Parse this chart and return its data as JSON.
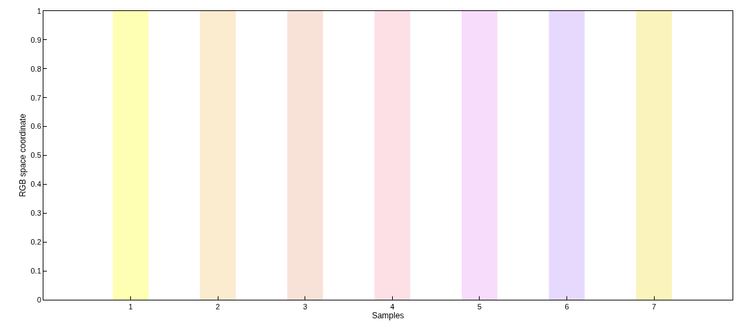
{
  "chart_data": {
    "type": "bar",
    "xlabel": "Samples",
    "ylabel": "RGB space coordinate",
    "x": [
      1,
      2,
      3,
      4,
      5,
      6,
      7
    ],
    "values": [
      1,
      1,
      1,
      1,
      1,
      1,
      1
    ],
    "colors": [
      "#ffffb3",
      "#fbebcf",
      "#f8e2d8",
      "#fde0e6",
      "#f8dcfc",
      "#e7d9fe",
      "#faf4bc"
    ],
    "xlim": [
      0,
      7.9
    ],
    "xticks": [
      1,
      2,
      3,
      4,
      5,
      6,
      7
    ],
    "ylim": [
      0,
      1
    ],
    "yticks": [
      0,
      0.1,
      0.2,
      0.3,
      0.4,
      0.5,
      0.6,
      0.7,
      0.8,
      0.9,
      1
    ]
  }
}
